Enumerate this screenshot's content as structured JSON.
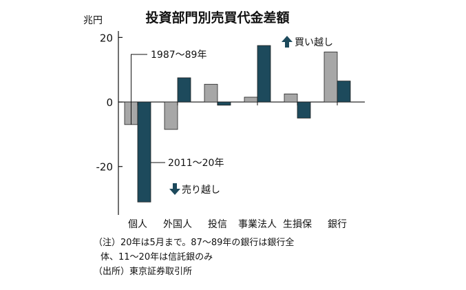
{
  "chart_data": {
    "type": "bar",
    "title": "投資部門別売買代金差額",
    "ylabel": "兆円",
    "categories": [
      "個人",
      "外国人",
      "投信",
      "事業法人",
      "生損保",
      "銀行"
    ],
    "series": [
      {
        "name": "1987〜89年",
        "values": [
          -7.0,
          -8.5,
          5.5,
          1.5,
          2.5,
          15.5
        ]
      },
      {
        "name": "2011〜20年",
        "values": [
          -31.0,
          7.5,
          -1.0,
          17.5,
          -5.0,
          6.5
        ]
      }
    ],
    "ylim": [
      -35,
      22
    ],
    "yticks": [
      20,
      0,
      -20
    ],
    "ytick_labels": [
      "20",
      "0",
      "-20"
    ],
    "grid": false,
    "annotations": {
      "buy_label": "買い越し",
      "sell_label": "売り越し"
    },
    "colors": {
      "series_1987_89": "#a7a7a7",
      "series_2011_20": "#1d4a5c",
      "arrow": "#1d4a5c",
      "axis": "#111111"
    }
  },
  "notes": {
    "line1": "（注）20年は5月まで。87〜89年の銀行は銀行全",
    "line2": "体、11〜20年は信託銀のみ",
    "source": "（出所）東京証券取引所"
  }
}
